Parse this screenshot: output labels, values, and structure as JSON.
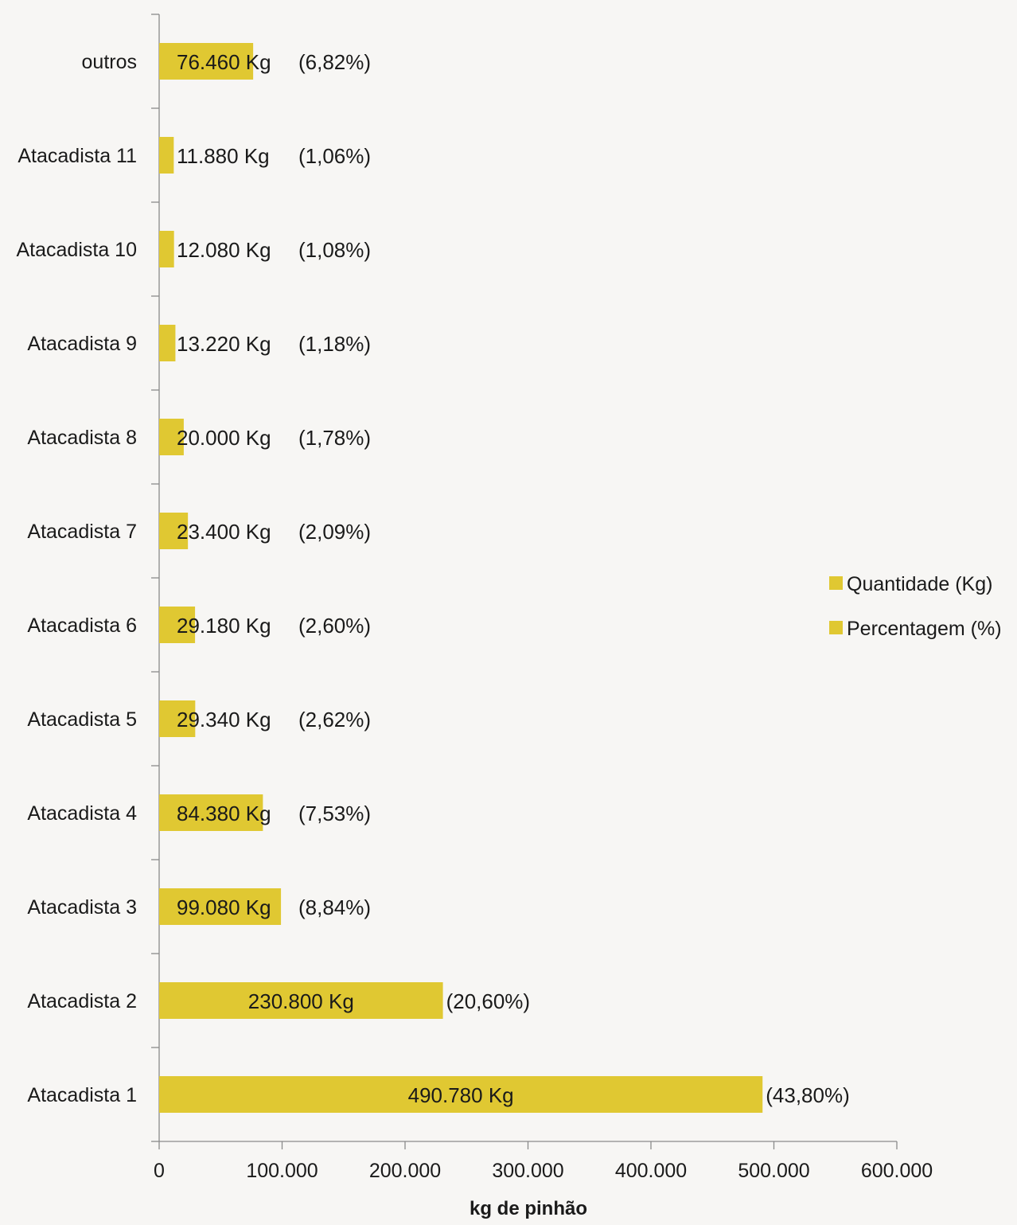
{
  "chart_data": {
    "type": "bar",
    "orientation": "horizontal",
    "categories": [
      "Atacadista 1",
      "Atacadista 2",
      "Atacadista 3",
      "Atacadista 4",
      "Atacadista 5",
      "Atacadista 6",
      "Atacadista 7",
      "Atacadista 8",
      "Atacadista 9",
      "Atacadista 10",
      "Atacadista 11",
      "outros"
    ],
    "values": [
      490780,
      230800,
      99080,
      84380,
      29340,
      29180,
      23400,
      20000,
      13220,
      12080,
      11880,
      76460
    ],
    "value_labels": [
      "490.780 Kg",
      "230.800 Kg",
      "99.080 Kg",
      "84.380 Kg",
      "29.340 Kg",
      "29.180 Kg",
      "23.400 Kg",
      "20.000 Kg",
      "13.220 Kg",
      "12.080 Kg",
      "11.880 Kg",
      "76.460 Kg"
    ],
    "percent_labels": [
      "(43,80%)",
      "(20,60%)",
      "(8,84%)",
      "(7,53%)",
      "(2,62%)",
      "(2,60%)",
      "(2,09%)",
      "(1,78%)",
      "(1,18%)",
      "(1,08%)",
      "(1,06%)",
      "(6,82%)"
    ],
    "xlabel": "kg de pinhão",
    "ylabel": "",
    "xlim": [
      0,
      600000
    ],
    "x_ticks": [
      0,
      100000,
      200000,
      300000,
      400000,
      500000,
      600000
    ],
    "x_tick_labels": [
      "0",
      "100.000",
      "200.000",
      "300.000",
      "400.000",
      "500.000",
      "600.000"
    ],
    "legend": {
      "position": "right",
      "entries": [
        "Quantidade (Kg)",
        "Percentagem (%)"
      ]
    },
    "grid": false,
    "bar_color": "#e0c832",
    "background_color": "#f7f6f4"
  }
}
